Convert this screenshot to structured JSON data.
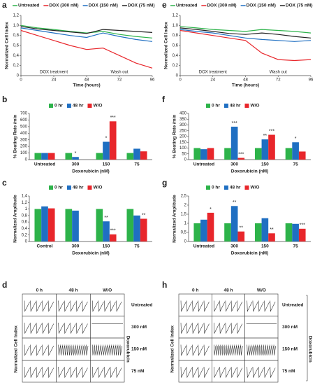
{
  "chart_data": [
    {
      "type": "line",
      "panel": "a",
      "x_label": "Time (hours)",
      "y_label": "Normalized Cell Index",
      "x": [
        0,
        12,
        24,
        36,
        48,
        60,
        72,
        84,
        96
      ],
      "xlim": [
        0,
        96
      ],
      "xticks": [
        0,
        24,
        48,
        72,
        96
      ],
      "ylim": [
        0,
        1.2
      ],
      "yticks": [
        0,
        {
          "value": 0.2,
          "label": "0,2"
        },
        {
          "value": 0.4,
          "label": "0,4"
        },
        {
          "value": 0.6,
          "label": "0,6"
        },
        {
          "value": 0.8,
          "label": "0,8"
        },
        {
          "value": 1,
          "label": "1,0"
        },
        {
          "value": 1.2,
          "label": "1,2"
        }
      ],
      "annotations": [
        "DOX treatment",
        "Wash out"
      ],
      "series": [
        {
          "name": "Untreated",
          "color": "#2db34a",
          "values": [
            1.0,
            0.95,
            0.92,
            0.88,
            0.85,
            0.88,
            0.82,
            0.78,
            0.75
          ]
        },
        {
          "name": "DOX (300 nM)",
          "color": "#e8262b",
          "values": [
            0.9,
            0.8,
            0.7,
            0.6,
            0.52,
            0.55,
            0.4,
            0.25,
            0.15
          ]
        },
        {
          "name": "DOX (150 nM)",
          "color": "#1f6fc2",
          "values": [
            0.95,
            0.9,
            0.85,
            0.8,
            0.76,
            0.85,
            0.78,
            0.72,
            0.68
          ]
        },
        {
          "name": "DOX (75 nM)",
          "color": "#222222",
          "values": [
            0.98,
            0.93,
            0.9,
            0.87,
            0.84,
            0.92,
            0.9,
            0.88,
            0.86
          ]
        }
      ]
    },
    {
      "type": "line",
      "panel": "e",
      "x_label": "Time (hours)",
      "y_label": "Normalized Cell Index",
      "x": [
        0,
        12,
        24,
        36,
        48,
        60,
        72,
        84,
        96
      ],
      "xlim": [
        0,
        96
      ],
      "xticks": [
        0,
        24,
        48,
        72,
        96
      ],
      "ylim": [
        0,
        1.2
      ],
      "yticks": [
        0,
        {
          "value": 0.2,
          "label": "0,2"
        },
        {
          "value": 0.4,
          "label": "0,4"
        },
        {
          "value": 0.6,
          "label": "0,6"
        },
        {
          "value": 0.8,
          "label": "0,8"
        },
        {
          "value": 1,
          "label": "1,0"
        },
        {
          "value": 1.2,
          "label": "1,2"
        }
      ],
      "annotations": [
        "DOX treatment",
        "Wash out"
      ],
      "series": [
        {
          "name": "Untreated",
          "color": "#2db34a",
          "values": [
            0.98,
            0.95,
            0.92,
            0.9,
            0.88,
            0.92,
            0.9,
            0.88,
            0.85
          ]
        },
        {
          "name": "DOX (300 nM)",
          "color": "#e8262b",
          "values": [
            0.9,
            0.85,
            0.8,
            0.75,
            0.7,
            0.45,
            0.32,
            0.3,
            0.32
          ]
        },
        {
          "name": "DOX (150 nM)",
          "color": "#1f6fc2",
          "values": [
            0.92,
            0.88,
            0.85,
            0.8,
            0.75,
            0.72,
            0.7,
            0.68,
            0.7
          ]
        },
        {
          "name": "DOX (75 nM)",
          "color": "#222222",
          "values": [
            0.95,
            0.92,
            0.88,
            0.84,
            0.82,
            0.85,
            0.82,
            0.78,
            0.75
          ]
        }
      ]
    },
    {
      "type": "bar",
      "panel": "b",
      "x_label": "Doxorubicin (nM)",
      "y_label": "% Beating Rate /min",
      "categories": [
        "Untreated",
        "300",
        "150",
        "75"
      ],
      "ylim": [
        0,
        700
      ],
      "yticks": [
        0,
        100,
        200,
        300,
        400,
        500,
        600,
        700
      ],
      "series": [
        {
          "name": "0 hr",
          "color": "#2db34a",
          "values": [
            100,
            100,
            100,
            100
          ]
        },
        {
          "name": "48 hr",
          "color": "#1f6fc2",
          "values": [
            100,
            40,
            270,
            165
          ]
        },
        {
          "name": "W/O",
          "color": "#e8262b",
          "values": [
            100,
            null,
            580,
            125
          ]
        }
      ],
      "significance": [
        {
          "text": "*",
          "category": 1,
          "series": 1
        },
        {
          "text": "*",
          "category": 2,
          "series": 1
        },
        {
          "text": "***",
          "category": 2,
          "series": 2
        }
      ]
    },
    {
      "type": "bar",
      "panel": "f",
      "x_label": "Doxorubicin (nM)",
      "y_label": "% Beating Rate /min",
      "categories": [
        "Untreated",
        "300",
        "150",
        "75"
      ],
      "ylim": [
        0,
        400
      ],
      "yticks": [
        0,
        50,
        100,
        150,
        200,
        250,
        300,
        350,
        400
      ],
      "series": [
        {
          "name": "0 hr",
          "color": "#2db34a",
          "values": [
            100,
            100,
            100,
            100
          ]
        },
        {
          "name": "48 hr",
          "color": "#1f6fc2",
          "values": [
            90,
            285,
            175,
            150
          ]
        },
        {
          "name": "W/O",
          "color": "#e8262b",
          "values": [
            100,
            15,
            215,
            70
          ]
        }
      ],
      "significance": [
        {
          "text": "***",
          "category": 1,
          "series": 1
        },
        {
          "text": "***",
          "category": 1,
          "series": 2
        },
        {
          "text": "**",
          "category": 2,
          "series": 1
        },
        {
          "text": "***",
          "category": 2,
          "series": 2
        },
        {
          "text": "*",
          "category": 3,
          "series": 1
        }
      ]
    },
    {
      "type": "bar",
      "panel": "c",
      "x_label": "Doxorubicin (nM)",
      "y_label": "Normalized Amplitude",
      "categories": [
        "Control",
        "300",
        "150",
        "75"
      ],
      "ylim": [
        0,
        1.4
      ],
      "yticks": [
        0,
        {
          "value": 0.2,
          "label": "0,2"
        },
        {
          "value": 0.4,
          "label": "0,4"
        },
        {
          "value": 0.6,
          "label": "0,6"
        },
        {
          "value": 0.8,
          "label": "0,8"
        },
        1,
        {
          "value": 1.2,
          "label": "1,2"
        },
        {
          "value": 1.4,
          "label": "1,4"
        }
      ],
      "series": [
        {
          "name": "0 hr",
          "color": "#2db34a",
          "values": [
            1.0,
            1.0,
            1.0,
            1.0
          ]
        },
        {
          "name": "48 hr",
          "color": "#1f6fc2",
          "values": [
            1.08,
            0.95,
            0.62,
            0.8
          ]
        },
        {
          "name": "W/O",
          "color": "#e8262b",
          "values": [
            1.02,
            null,
            0.22,
            0.7
          ]
        }
      ],
      "significance": [
        {
          "text": "**",
          "category": 2,
          "series": 1
        },
        {
          "text": "***",
          "category": 2,
          "series": 2
        },
        {
          "text": "**",
          "category": 3,
          "series": 2
        }
      ]
    },
    {
      "type": "bar",
      "panel": "g",
      "x_label": "Doxorubicin (nM)",
      "y_label": "Normalized Amplitude",
      "categories": [
        "Untreated",
        "300",
        "150",
        "75"
      ],
      "ylim": [
        0,
        2.5
      ],
      "yticks": [
        0,
        {
          "value": 0.5,
          "label": "0,5"
        },
        1,
        {
          "value": 1.5,
          "label": "1,5"
        },
        2,
        {
          "value": 2.5,
          "label": "2,5"
        }
      ],
      "series": [
        {
          "name": "0 hr",
          "color": "#2db34a",
          "values": [
            1.0,
            1.0,
            1.0,
            1.0
          ]
        },
        {
          "name": "48 hr",
          "color": "#1f6fc2",
          "values": [
            1.2,
            1.95,
            1.28,
            0.97
          ]
        },
        {
          "name": "W/O",
          "color": "#e8262b",
          "values": [
            1.58,
            0.55,
            0.45,
            0.7
          ]
        }
      ],
      "significance": [
        {
          "text": "*",
          "category": 0,
          "series": 2
        },
        {
          "text": "**",
          "category": 1,
          "series": 1
        },
        {
          "text": "**",
          "category": 1,
          "series": 2
        },
        {
          "text": "**",
          "category": 2,
          "series": 2
        },
        {
          "text": "***",
          "category": 3,
          "series": 2
        }
      ]
    }
  ],
  "images": [
    {
      "panel": "d",
      "columns": [
        "0 h",
        "48 h",
        "W/O"
      ],
      "rows": [
        "Untreated",
        "300 nM",
        "150 nM",
        "75 nM"
      ],
      "group_label": "Doxorubicin",
      "y_label": "Normalized Cell Index"
    },
    {
      "panel": "h",
      "columns": [
        "0 h",
        "48 h",
        "W/O"
      ],
      "rows": [
        "Untreated",
        "300 nM",
        "150 nM",
        "75 nM"
      ],
      "group_label": "Doxorubicin",
      "y_label": "Normalized Cell Index"
    }
  ]
}
